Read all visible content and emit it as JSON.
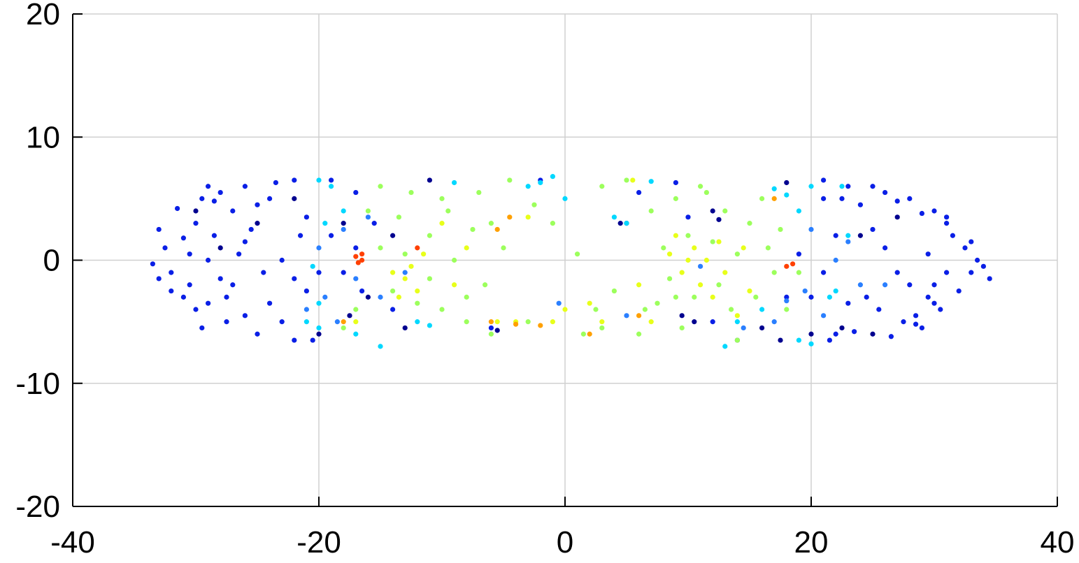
{
  "chart_data": {
    "type": "scatter",
    "xlim": [
      -40,
      40
    ],
    "ylim": [
      -20,
      20
    ],
    "xticks": [
      -40,
      -20,
      0,
      20,
      40
    ],
    "yticks": [
      -20,
      -10,
      0,
      10,
      20
    ],
    "grid": true,
    "series": [
      {
        "color": "#00008f",
        "x": [
          -22,
          -18,
          -16,
          -13,
          -11,
          -5.5,
          4.5,
          5,
          10.5,
          12,
          14,
          16,
          17.5,
          18,
          20,
          22.5,
          25,
          27,
          24,
          -25,
          -28,
          -30,
          -20,
          -17.5,
          -14,
          12.5,
          9.5
        ],
        "y": [
          5,
          3,
          -3,
          -5.5,
          6.5,
          -5.7,
          3,
          3,
          -5,
          4,
          -6.5,
          -5.5,
          -6.5,
          6.3,
          -6,
          -5.5,
          -6,
          3.5,
          2,
          3,
          1,
          4,
          -6,
          -4.5,
          2,
          3.3,
          -4.5
        ]
      },
      {
        "color": "#0a1fe6",
        "x": [
          -33.5,
          -33,
          -32.5,
          -32,
          -31.5,
          -31,
          -31,
          -30.5,
          -30,
          -30,
          -29.5,
          -29,
          -29,
          -28.5,
          -28,
          -28,
          -27.5,
          -27,
          -27,
          -26.5,
          -26,
          -26,
          -25.5,
          -25,
          -24.5,
          -24,
          -24,
          -23.5,
          -23,
          -23,
          -22,
          -22,
          -21.5,
          -21,
          -20.5,
          -29.5,
          -32,
          -28.5,
          -26,
          -25,
          -27.5,
          -30.5,
          -33,
          -29,
          21,
          22,
          23,
          23.5,
          24,
          24.5,
          25,
          25.5,
          26,
          26.5,
          27,
          27.5,
          28,
          28.5,
          29,
          29,
          29.5,
          30,
          30,
          30.5,
          31,
          31,
          31.5,
          32,
          32.5,
          33,
          33.5,
          34,
          34.5,
          33,
          28,
          29.5,
          31,
          30,
          28.5,
          27,
          26,
          25,
          22.5,
          21.5,
          -17,
          -18,
          -19,
          -16.5,
          -20,
          -17,
          -15.5,
          -14,
          -19,
          -21,
          -22,
          21,
          22,
          20,
          19,
          18,
          23,
          21,
          12,
          10,
          9,
          6,
          -2,
          -6
        ],
        "y": [
          -0.3,
          2.5,
          1,
          -1,
          4.2,
          -3,
          1.8,
          -2,
          3,
          -4,
          5,
          0,
          -3.5,
          2,
          5.5,
          -1.5,
          -5,
          4,
          -2,
          0.5,
          6,
          -4.5,
          2.5,
          -6,
          -1,
          5,
          -3.5,
          6.3,
          0,
          -5,
          6.5,
          -6.5,
          2,
          -2.5,
          -6.5,
          -5.5,
          -2.5,
          4.8,
          1.5,
          4.5,
          -3,
          0.5,
          -1.5,
          6,
          6.5,
          -6,
          6,
          -5.8,
          4.5,
          -3,
          6,
          -4,
          5.5,
          -6.2,
          4.8,
          -5,
          5,
          -4.5,
          3.8,
          -5.5,
          -3,
          4,
          -2,
          -4,
          3.5,
          -1,
          2,
          -2.5,
          1,
          -1,
          0,
          -0.5,
          -1.5,
          1.5,
          -2,
          0.5,
          3,
          -3.5,
          -5.2,
          -1,
          1,
          2.5,
          5,
          -6.5,
          1,
          -1,
          2,
          -2.5,
          -1,
          5.5,
          3,
          -4,
          6.5,
          3.5,
          -1.5,
          -1,
          2,
          -3,
          0.5,
          -3,
          -3.5,
          5,
          -5,
          3.5,
          6.3,
          5.5,
          6.5,
          -5.5
        ]
      },
      {
        "color": "#2a7fff",
        "x": [
          -21,
          -19.5,
          -18,
          -18.5,
          -16,
          -15,
          -20,
          -17,
          22,
          19.5,
          18,
          17,
          21,
          20,
          23,
          -0.5,
          5,
          -13,
          14.5,
          11,
          26,
          24
        ],
        "y": [
          -4,
          -3,
          2.5,
          -5,
          3.5,
          -3,
          1,
          -1.5,
          0,
          -2.5,
          -3.3,
          -5,
          -4.5,
          2.5,
          1.5,
          -3.5,
          -4.5,
          -1,
          -5.5,
          -0.5,
          -2,
          -2
        ]
      },
      {
        "color": "#00d8ff",
        "x": [
          -20,
          -19,
          -21,
          -20,
          -19.5,
          -20,
          -17,
          -15,
          -18,
          -12,
          -11,
          -9,
          -2,
          -3,
          -1,
          0,
          14,
          13,
          19,
          20,
          17,
          18,
          20,
          22.5,
          23,
          22,
          19,
          16,
          21.5,
          -20.5,
          5,
          7,
          4
        ],
        "y": [
          6.5,
          6,
          -5,
          -5.5,
          3,
          -3.5,
          -6,
          -7,
          4,
          -5,
          -5.3,
          6.3,
          6.3,
          6,
          6.8,
          5,
          -5,
          -7,
          -6.5,
          -6.8,
          5.8,
          5.3,
          6,
          6,
          2,
          -2.5,
          4,
          -4,
          -3,
          -0.5,
          3,
          6.4,
          3.5
        ]
      },
      {
        "color": "#9cff5c",
        "x": [
          -16,
          -15,
          -14,
          -13.5,
          -12.5,
          -12,
          -11,
          -10,
          -9.5,
          -9,
          -8,
          -7.5,
          -7,
          -6.5,
          -6,
          -5,
          -4.5,
          -3,
          -2.5,
          -1,
          1,
          1.5,
          2.5,
          3,
          4,
          5,
          6,
          7,
          7.5,
          8,
          8.5,
          9,
          9.5,
          10,
          10.5,
          11,
          12,
          12.5,
          13,
          13.5,
          14,
          15,
          15.5,
          16,
          16.5,
          17,
          17.5,
          18,
          -17,
          -18,
          -15,
          -13,
          -11,
          -10,
          -8,
          -6,
          3,
          6.5,
          9,
          14,
          19,
          11.5
        ],
        "y": [
          4,
          1,
          -2.5,
          3.5,
          5.5,
          -3.5,
          2,
          -4,
          4,
          0,
          -3,
          2.5,
          5.5,
          -2,
          -6,
          1,
          6.5,
          -5,
          4.5,
          3,
          0.5,
          -6,
          -4,
          6,
          -2.5,
          6.5,
          -6,
          4,
          -3.5,
          1,
          -1.5,
          5,
          -5.5,
          2,
          -3,
          6,
          1.5,
          -2,
          4,
          -4,
          0.5,
          3,
          -3,
          5,
          1,
          -1,
          2.5,
          -4,
          -4,
          -5.5,
          6,
          0.5,
          -1.5,
          5,
          -5,
          3,
          -5.5,
          -4,
          -3,
          -6.5,
          -1,
          5.5
        ]
      },
      {
        "color": "#e8ff1a",
        "x": [
          -13,
          -12.5,
          -12,
          -13.5,
          -11.5,
          -14,
          -10,
          -9,
          -8,
          -4,
          -3,
          -1,
          0,
          2,
          3,
          5.5,
          6,
          7,
          8.5,
          9.5,
          10,
          10.5,
          11,
          11.5,
          12,
          12.5,
          13,
          14.5,
          15,
          14,
          9,
          -5.5,
          -17
        ],
        "y": [
          -1.5,
          -0.5,
          -2.5,
          -3,
          0.5,
          -1,
          3,
          -2,
          1,
          -5,
          3.5,
          -5,
          -4,
          -3.5,
          -5,
          6.5,
          -2,
          -5,
          0.5,
          -1,
          0,
          1,
          -2,
          0,
          -3,
          1.5,
          -1,
          1,
          -2.5,
          -4.5,
          2,
          -5,
          -5
        ]
      },
      {
        "color": "#ffa000",
        "x": [
          -5.5,
          -4.5,
          -6,
          -4,
          6,
          2,
          17,
          -18,
          -2
        ],
        "y": [
          2.5,
          3.5,
          -5,
          -5.2,
          -4.5,
          -6,
          5,
          -5,
          -5.3
        ]
      },
      {
        "color": "#ff4000",
        "x": [
          -17,
          -16.5,
          -16.5,
          -16.8,
          -12,
          18.5,
          18
        ],
        "y": [
          0.3,
          0.5,
          0,
          -0.2,
          1,
          -0.3,
          -0.5
        ]
      }
    ]
  }
}
